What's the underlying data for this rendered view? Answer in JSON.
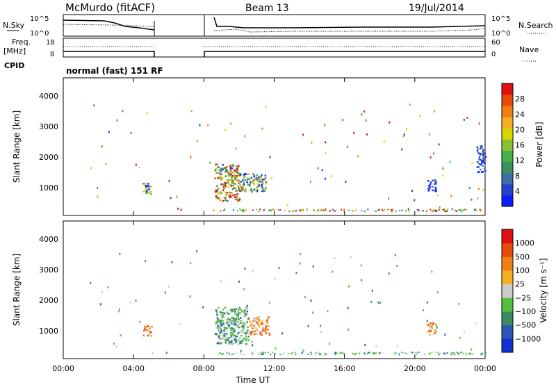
{
  "header": {
    "station": "McMurdo (fitACF)",
    "beam": "Beam 13",
    "date": "19/Jul/2014"
  },
  "noise_panel": {
    "left_label": "N.Sky",
    "left_ticks": [
      "10^5",
      "10^0"
    ],
    "right_ticks": [
      "10^5",
      "10^0"
    ],
    "right_label": "N.Search"
  },
  "freq_panel": {
    "left_label_top": "Freq.",
    "left_label_bottom": "[MHz]",
    "left_ticks": [
      "18",
      "8"
    ],
    "right_ticks": [
      "60",
      "0"
    ],
    "right_label": "Nave",
    "cpid_label": "CPID",
    "cpid_text": "normal (fast) 151 RF"
  },
  "chart_data": [
    {
      "type": "heatmap",
      "name": "power",
      "ylabel": "Slant Range [km]",
      "yticks": [
        "1000",
        "2000",
        "3000",
        "4000"
      ],
      "ylim": [
        0,
        4500
      ],
      "colorbar_label": "Power [dB]",
      "colorbar_ticks": [
        "4",
        "8",
        "12",
        "16",
        "20",
        "24",
        "28"
      ],
      "colorbar_colors": [
        "#0a1fff",
        "#2940c8",
        "#3e6ea8",
        "#3c9060",
        "#45b048",
        "#86c234",
        "#d7d700",
        "#f4b020",
        "#f08014",
        "#e84a0c",
        "#e01010"
      ],
      "clusters": [
        {
          "t_start": 4.5,
          "t_end": 5.0,
          "r_min": 700,
          "r_max": 1100,
          "level": "mid"
        },
        {
          "t_start": 8.6,
          "t_end": 10.0,
          "r_min": 500,
          "r_max": 1700,
          "level": "high"
        },
        {
          "t_start": 10.0,
          "t_end": 11.5,
          "r_min": 800,
          "r_max": 1400,
          "level": "mid"
        },
        {
          "t_start": 20.7,
          "t_end": 21.2,
          "r_min": 800,
          "r_max": 1200,
          "level": "low"
        },
        {
          "t_start": 23.5,
          "t_end": 24.0,
          "r_min": 1400,
          "r_max": 2300,
          "level": "low"
        }
      ]
    },
    {
      "type": "heatmap",
      "name": "velocity",
      "ylabel": "Slant Range [km]",
      "yticks": [
        "1000",
        "2000",
        "3000",
        "4000"
      ],
      "ylim": [
        0,
        4500
      ],
      "colorbar_label": "Velocity [m s⁻¹]",
      "colorbar_ticks": [
        "1000",
        "500",
        "100",
        "25",
        "−25",
        "−100",
        "−500",
        "−1000"
      ],
      "colorbar_colors": [
        "#1030d0",
        "#2a58b8",
        "#3c8a60",
        "#55c040",
        "#cccccc",
        "#f4b020",
        "#f08014",
        "#e84a0c",
        "#e01010"
      ],
      "clusters": [
        {
          "t_start": 4.5,
          "t_end": 5.0,
          "r_min": 700,
          "r_max": 1100,
          "level": "neg"
        },
        {
          "t_start": 8.6,
          "t_end": 10.5,
          "r_min": 500,
          "r_max": 1700,
          "level": "pos"
        },
        {
          "t_start": 10.5,
          "t_end": 11.7,
          "r_min": 800,
          "r_max": 1400,
          "level": "neg"
        },
        {
          "t_start": 20.7,
          "t_end": 21.2,
          "r_min": 800,
          "r_max": 1200,
          "level": "neg"
        }
      ]
    }
  ],
  "time_axis": {
    "ticks": [
      "00:00",
      "04:00",
      "08:00",
      "12:00",
      "16:00",
      "20:00",
      "00:00"
    ],
    "label": "Time UT",
    "range_hours": [
      0,
      24
    ]
  },
  "colors": {
    "axis": "#000000",
    "grid": "#999999"
  }
}
